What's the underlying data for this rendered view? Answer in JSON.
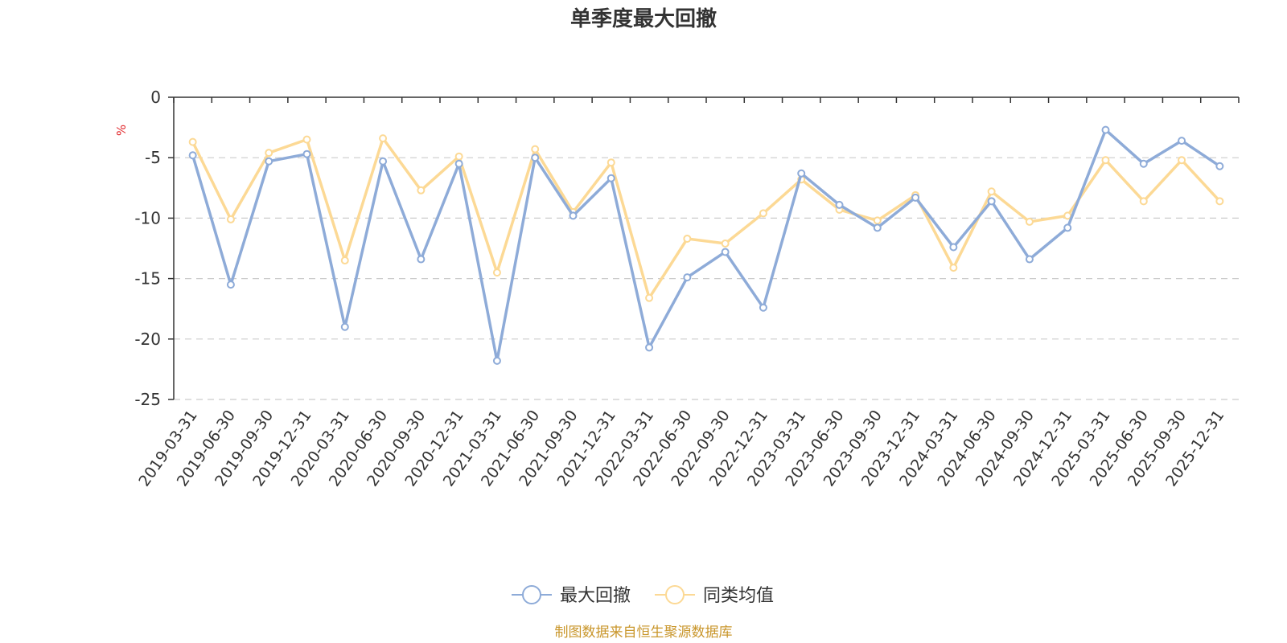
{
  "colors": {
    "series_max_drawdown": "#8eabd8",
    "series_peer_avg": "#fcd995",
    "unit": "#e0262a",
    "source": "#c9962b",
    "grid": "#cccccc",
    "axis": "#333333"
  },
  "chart_data": {
    "type": "line",
    "title": "单季度最大回撤",
    "ylabel": "%",
    "ylim": [
      -25,
      0
    ],
    "yticks": [
      0,
      -5,
      -10,
      -15,
      -20,
      -25
    ],
    "grid": true,
    "legend_position": "bottom-center",
    "categories": [
      "2019-03-31",
      "2019-06-30",
      "2019-09-30",
      "2019-12-31",
      "2020-03-31",
      "2020-06-30",
      "2020-09-30",
      "2020-12-31",
      "2021-03-31",
      "2021-06-30",
      "2021-09-30",
      "2021-12-31",
      "2022-03-31",
      "2022-06-30",
      "2022-09-30",
      "2022-12-31",
      "2023-03-31",
      "2023-06-30",
      "2023-09-30",
      "2023-12-31",
      "2024-03-31",
      "2024-06-30",
      "2024-09-30",
      "2024-12-31",
      "2025-03-31",
      "2025-06-30",
      "2025-09-30",
      "2025-12-31"
    ],
    "series": [
      {
        "name": "最大回撤",
        "color_key": "series_max_drawdown",
        "values": [
          -4.8,
          -15.5,
          -5.3,
          -4.7,
          -19.0,
          -5.3,
          -13.4,
          -5.5,
          -21.8,
          -5.0,
          -9.8,
          -6.7,
          -20.7,
          -14.9,
          -12.8,
          -17.4,
          -6.3,
          -8.9,
          -10.8,
          -8.3,
          -12.4,
          -8.6,
          -13.4,
          -10.8,
          -2.7,
          -5.5,
          -3.6,
          -5.7
        ]
      },
      {
        "name": "同类均值",
        "color_key": "series_peer_avg",
        "values": [
          -3.7,
          -10.1,
          -4.6,
          -3.5,
          -13.5,
          -3.4,
          -7.7,
          -4.9,
          -14.5,
          -4.3,
          -9.5,
          -5.4,
          -16.6,
          -11.7,
          -12.1,
          -9.6,
          -6.8,
          -9.3,
          -10.2,
          -8.1,
          -14.1,
          -7.8,
          -10.3,
          -9.8,
          -5.2,
          -8.6,
          -5.2,
          -8.6
        ]
      }
    ]
  },
  "footer": {
    "source": "制图数据来自恒生聚源数据库"
  }
}
